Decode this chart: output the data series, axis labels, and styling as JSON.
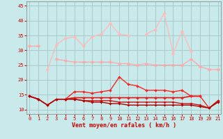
{
  "xlabel": "Vent moyen/en rafales ( km/h )",
  "bg_color": "#c8eaea",
  "grid_color": "#a8cccc",
  "x": [
    0,
    1,
    2,
    3,
    4,
    5,
    6,
    7,
    8,
    9,
    10,
    11,
    12,
    13,
    14,
    15,
    16,
    17,
    18,
    19,
    20,
    21
  ],
  "ylim": [
    8.5,
    46.5
  ],
  "xlim": [
    -0.3,
    21.3
  ],
  "yticks": [
    10,
    15,
    20,
    25,
    30,
    35,
    40,
    45
  ],
  "xticks": [
    0,
    1,
    2,
    3,
    4,
    5,
    6,
    7,
    8,
    9,
    10,
    11,
    12,
    13,
    14,
    15,
    16,
    17,
    18,
    19,
    20,
    21
  ],
  "lines": [
    {
      "y": [
        31.5,
        31.5,
        null,
        null,
        null,
        null,
        null,
        null,
        null,
        null,
        null,
        null,
        null,
        null,
        null,
        null,
        null,
        null,
        null,
        null,
        null,
        null
      ],
      "color": "#ffaaaa",
      "lw": 1.0,
      "marker": "D",
      "ms": 2.5
    },
    {
      "y": [
        null,
        null,
        null,
        27,
        26.5,
        26,
        26,
        26,
        26,
        26,
        25.5,
        25.5,
        25,
        25.5,
        25,
        25,
        25,
        25,
        27,
        24.5,
        23.5,
        23.5
      ],
      "color": "#ffaaaa",
      "lw": 1.0,
      "marker": "D",
      "ms": 2.5
    },
    {
      "y": [
        null,
        null,
        23.5,
        32,
        34,
        34.5,
        31.5,
        34.5,
        35.5,
        39,
        35.5,
        35,
        null,
        35.5,
        37,
        42.5,
        29,
        36.5,
        29.5,
        null,
        null,
        null
      ],
      "color": "#ffbbbb",
      "lw": 1.0,
      "marker": "D",
      "ms": 2.5
    },
    {
      "y": [
        14.5,
        13.5,
        null,
        null,
        13.5,
        14,
        14,
        14,
        14,
        14,
        14,
        14,
        14,
        14,
        14,
        14,
        14,
        14,
        14.5,
        14.5,
        null,
        null
      ],
      "color": "#dd2222",
      "lw": 1.3,
      "marker": "D",
      "ms": 2
    },
    {
      "y": [
        14.5,
        13.5,
        11.5,
        13.5,
        13.5,
        16,
        16,
        15.5,
        16,
        16.5,
        21,
        18.5,
        18,
        16.5,
        16.5,
        16.5,
        16,
        16.5,
        14.5,
        14.5,
        10.5,
        13
      ],
      "color": "#ff2222",
      "lw": 1.0,
      "marker": "D",
      "ms": 2.0
    },
    {
      "y": [
        14.5,
        13.5,
        11.5,
        13.5,
        13.5,
        13.5,
        13,
        13,
        13,
        13,
        12.5,
        12.5,
        12.5,
        12.5,
        12.5,
        12.5,
        12.5,
        12,
        12,
        11.5,
        10.5,
        13
      ],
      "color": "#cc1111",
      "lw": 1.0,
      "marker": "D",
      "ms": 1.8
    },
    {
      "y": [
        14.5,
        13.5,
        11.5,
        13.5,
        13.5,
        13.5,
        13,
        12.5,
        12.5,
        12,
        12,
        11.5,
        11.5,
        11.5,
        11.5,
        11.5,
        11.5,
        11.5,
        11.5,
        11,
        10.5,
        12.5
      ],
      "color": "#aa0000",
      "lw": 1.0,
      "marker": "D",
      "ms": 1.8
    }
  ],
  "label_color": "#cc0000",
  "tick_color": "#cc0000",
  "axis_color": "#999999"
}
